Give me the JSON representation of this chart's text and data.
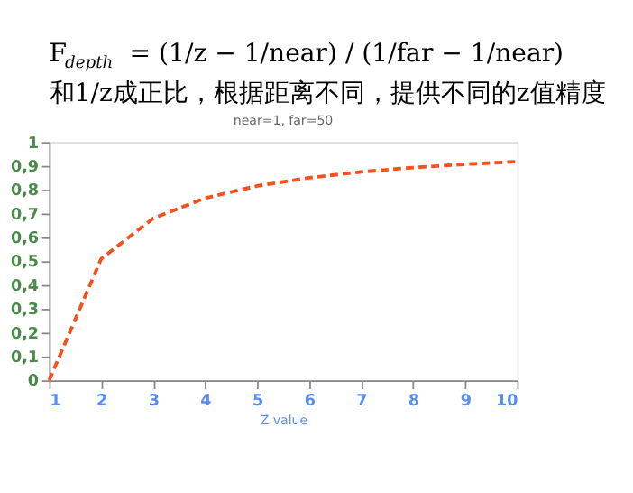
{
  "chart_data": {
    "type": "line",
    "title": "near=1, far=50",
    "annotations": [
      "F$_{depth}$ = (1/z − 1/near) / (1/far − 1/near)",
      "和1/z成正比，根据距离不同，提供不同的z值精度"
    ],
    "xlabel": "Z value",
    "x": [
      1,
      2,
      3,
      4,
      5,
      6,
      7,
      8,
      9,
      10
    ],
    "series": [
      {
        "color": "#f4511e",
        "values": [
          0,
          0.51,
          0.68,
          0.765,
          0.816,
          0.85,
          0.875,
          0.893,
          0.907,
          0.918
        ]
      }
    ],
    "xlim": [
      1,
      10
    ],
    "xticks": [
      1,
      2,
      3,
      4,
      5,
      6,
      7,
      8,
      9,
      10
    ],
    "ylim": [
      0,
      1
    ],
    "yticks": [
      0,
      {
        "value": 0.1,
        "label": "0,1"
      },
      {
        "value": 0.2,
        "label": "0,2"
      },
      {
        "value": 0.3,
        "label": "0,3"
      },
      {
        "value": 0.4,
        "label": "0,4"
      },
      {
        "value": 0.5,
        "label": "0,5"
      },
      {
        "value": 0.6,
        "label": "0,6"
      },
      {
        "value": 0.7,
        "label": "0,7"
      },
      {
        "value": 0.8,
        "label": "0,8"
      },
      {
        "value": 0.9,
        "label": "0,9"
      },
      1
    ],
    "grid": false,
    "marker": "none",
    "line_style": "dashed"
  }
}
